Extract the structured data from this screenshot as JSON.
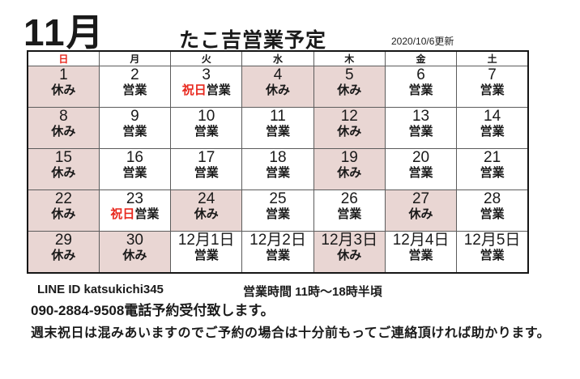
{
  "header": {
    "month_label": "11月",
    "title": "たこ吉営業予定",
    "updated": "2020/10/6更新"
  },
  "colors": {
    "closed_bg": "#e9d6d3",
    "accent_red": "#e8281e"
  },
  "calendar": {
    "day_headers": [
      "日",
      "月",
      "火",
      "水",
      "木",
      "金",
      "土"
    ],
    "weeks": [
      [
        {
          "date": "1",
          "status": "休み",
          "closed": true
        },
        {
          "date": "2",
          "status": "営業",
          "closed": false
        },
        {
          "date": "3",
          "status": "営業",
          "holiday_prefix": "祝日",
          "closed": false
        },
        {
          "date": "4",
          "status": "休み",
          "closed": true
        },
        {
          "date": "5",
          "status": "休み",
          "closed": true
        },
        {
          "date": "6",
          "status": "営業",
          "closed": false
        },
        {
          "date": "7",
          "status": "営業",
          "closed": false
        }
      ],
      [
        {
          "date": "8",
          "status": "休み",
          "closed": true
        },
        {
          "date": "9",
          "status": "営業",
          "closed": false
        },
        {
          "date": "10",
          "status": "営業",
          "closed": false
        },
        {
          "date": "11",
          "status": "営業",
          "closed": false
        },
        {
          "date": "12",
          "status": "休み",
          "closed": true
        },
        {
          "date": "13",
          "status": "営業",
          "closed": false
        },
        {
          "date": "14",
          "status": "営業",
          "closed": false
        }
      ],
      [
        {
          "date": "15",
          "status": "休み",
          "closed": true
        },
        {
          "date": "16",
          "status": "営業",
          "closed": false
        },
        {
          "date": "17",
          "status": "営業",
          "closed": false
        },
        {
          "date": "18",
          "status": "営業",
          "closed": false
        },
        {
          "date": "19",
          "status": "休み",
          "closed": true
        },
        {
          "date": "20",
          "status": "営業",
          "closed": false
        },
        {
          "date": "21",
          "status": "営業",
          "closed": false
        }
      ],
      [
        {
          "date": "22",
          "status": "休み",
          "closed": true
        },
        {
          "date": "23",
          "status": "営業",
          "holiday_prefix": "祝日",
          "closed": false
        },
        {
          "date": "24",
          "status": "休み",
          "closed": true
        },
        {
          "date": "25",
          "status": "営業",
          "closed": false
        },
        {
          "date": "26",
          "status": "営業",
          "closed": false
        },
        {
          "date": "27",
          "status": "休み",
          "closed": true
        },
        {
          "date": "28",
          "status": "営業",
          "closed": false
        }
      ],
      [
        {
          "date": "29",
          "status": "休み",
          "closed": true
        },
        {
          "date": "30",
          "status": "休み",
          "closed": true
        },
        {
          "date": "12月1日",
          "status": "営業",
          "closed": false
        },
        {
          "date": "12月2日",
          "status": "営業",
          "closed": false
        },
        {
          "date": "12月3日",
          "status": "休み",
          "closed": true
        },
        {
          "date": "12月4日",
          "status": "営業",
          "closed": false
        },
        {
          "date": "12月5日",
          "status": "営業",
          "closed": false
        }
      ]
    ]
  },
  "footer": {
    "line_id": "LINE ID katsukichi345",
    "hours": "営業時間 11時～18時半頃",
    "phone": "090-2884-9508電話予約受付致します。",
    "note": "週末祝日は混みあいますのでご予約の場合は十分前もってご連絡頂ければ助かります。"
  }
}
